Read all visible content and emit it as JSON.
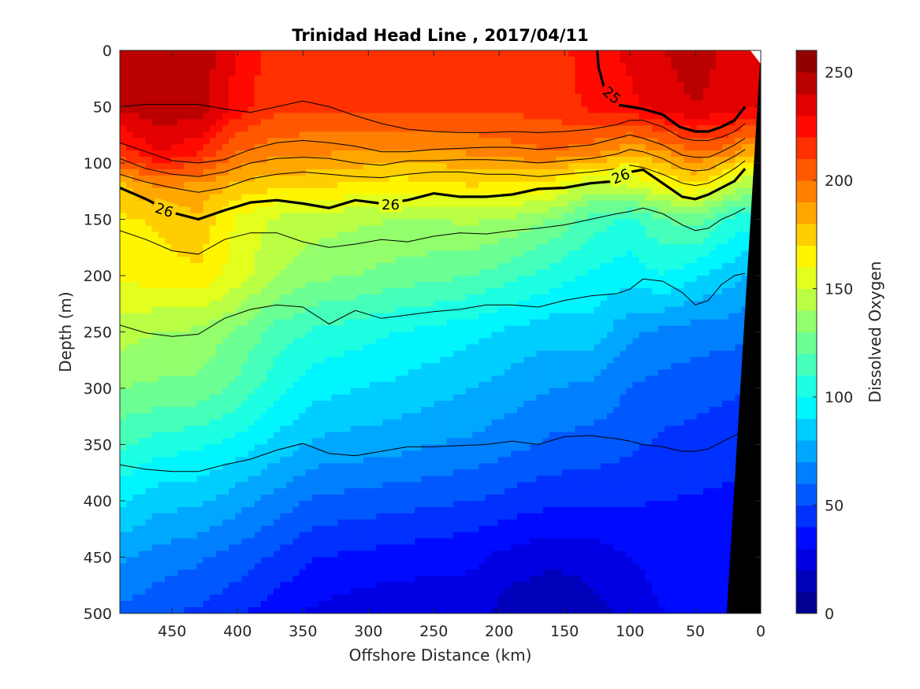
{
  "chart_data": {
    "type": "heatmap",
    "title": "Trinidad Head Line , 2017/04/11",
    "xlabel": "Offshore Distance (km)",
    "ylabel": "Depth (m)",
    "colorbar_label": "Dissolved Oxygen",
    "xlim": [
      490,
      0
    ],
    "ylim": [
      0,
      500
    ],
    "clim": [
      0,
      260
    ],
    "colormap": "jet",
    "x_ticks": [
      450,
      400,
      350,
      300,
      250,
      200,
      150,
      100,
      50,
      0
    ],
    "y_ticks": [
      0,
      50,
      100,
      150,
      200,
      250,
      300,
      350,
      400,
      450,
      500
    ],
    "colorbar_ticks": [
      0,
      50,
      100,
      150,
      200,
      250
    ],
    "field_x": [
      490,
      460,
      430,
      400,
      370,
      340,
      310,
      280,
      250,
      220,
      190,
      160,
      130,
      100,
      75,
      50,
      25,
      12
    ],
    "oxygen_profiles": [
      {
        "depth": 0,
        "values": [
          245,
          250,
          248,
          228,
          214,
          214,
          214,
          214,
          214,
          214,
          214,
          214,
          226,
          232,
          240,
          245,
          238,
          235
        ]
      },
      {
        "depth": 50,
        "values": [
          242,
          248,
          246,
          226,
          212,
          212,
          212,
          212,
          212,
          212,
          213,
          214,
          222,
          228,
          235,
          240,
          236,
          232
        ]
      },
      {
        "depth": 90,
        "values": [
          215,
          232,
          222,
          200,
          194,
          192,
          190,
          188,
          188,
          192,
          196,
          200,
          195,
          182,
          190,
          200,
          195,
          185
        ]
      },
      {
        "depth": 120,
        "values": [
          178,
          192,
          188,
          178,
          172,
          172,
          168,
          165,
          166,
          170,
          168,
          165,
          145,
          150,
          160,
          170,
          150,
          140
        ]
      },
      {
        "depth": 150,
        "values": [
          168,
          172,
          178,
          158,
          148,
          145,
          142,
          140,
          140,
          142,
          138,
          130,
          115,
          108,
          120,
          125,
          108,
          105
        ]
      },
      {
        "depth": 200,
        "values": [
          162,
          165,
          168,
          155,
          140,
          132,
          130,
          126,
          123,
          120,
          113,
          105,
          98,
          94,
          100,
          92,
          85,
          80
        ]
      },
      {
        "depth": 250,
        "values": [
          145,
          140,
          138,
          128,
          116,
          108,
          105,
          100,
          97,
          93,
          88,
          84,
          86,
          72,
          68,
          65,
          64,
          62
        ]
      },
      {
        "depth": 300,
        "values": [
          130,
          128,
          127,
          118,
          104,
          94,
          90,
          88,
          84,
          80,
          75,
          70,
          68,
          60,
          56,
          54,
          52,
          50
        ]
      },
      {
        "depth": 350,
        "values": [
          112,
          105,
          102,
          96,
          86,
          78,
          76,
          74,
          70,
          68,
          63,
          58,
          56,
          52,
          48,
          46,
          44,
          43
        ]
      },
      {
        "depth": 400,
        "values": [
          92,
          84,
          82,
          74,
          66,
          58,
          56,
          54,
          52,
          50,
          46,
          43,
          42,
          41,
          40,
          39,
          38,
          38
        ]
      },
      {
        "depth": 450,
        "values": [
          72,
          66,
          62,
          56,
          48,
          40,
          38,
          36,
          34,
          32,
          26,
          22,
          24,
          30,
          34,
          36,
          36,
          36
        ]
      },
      {
        "depth": 500,
        "values": [
          58,
          52,
          48,
          42,
          34,
          28,
          24,
          22,
          22,
          24,
          14,
          12,
          16,
          22,
          30,
          34,
          34,
          34
        ]
      }
    ],
    "density_contours": [
      {
        "x": [
          490,
          470,
          450,
          430,
          410,
          390,
          370,
          350,
          330,
          310,
          290,
          270,
          250,
          230,
          210,
          190,
          170,
          150,
          130,
          110,
          100,
          90,
          75,
          60,
          50,
          40,
          30,
          20,
          12
        ],
        "depth": [
          50,
          48,
          48,
          48,
          52,
          55,
          50,
          45,
          50,
          58,
          65,
          70,
          72,
          73,
          73,
          72,
          73,
          72,
          70,
          66,
          62,
          62,
          68,
          78,
          80,
          80,
          77,
          72,
          65
        ]
      },
      {
        "x": [
          490,
          470,
          450,
          430,
          410,
          390,
          370,
          350,
          330,
          310,
          290,
          270,
          250,
          230,
          210,
          190,
          170,
          150,
          130,
          110,
          100,
          90,
          75,
          60,
          50,
          40,
          30,
          20,
          12
        ],
        "depth": [
          82,
          90,
          98,
          100,
          97,
          88,
          82,
          80,
          82,
          85,
          90,
          90,
          88,
          87,
          86,
          86,
          88,
          86,
          84,
          78,
          75,
          78,
          84,
          93,
          95,
          95,
          90,
          84,
          78
        ]
      },
      {
        "x": [
          490,
          470,
          450,
          430,
          410,
          390,
          370,
          350,
          330,
          310,
          290,
          270,
          250,
          230,
          210,
          190,
          170,
          150,
          130,
          110,
          100,
          90,
          75,
          60,
          50,
          40,
          30,
          20,
          12
        ],
        "depth": [
          96,
          105,
          110,
          112,
          108,
          100,
          96,
          95,
          96,
          100,
          102,
          98,
          98,
          97,
          97,
          98,
          100,
          98,
          96,
          92,
          88,
          90,
          96,
          105,
          107,
          106,
          100,
          94,
          88
        ]
      },
      {
        "x": [
          490,
          470,
          450,
          430,
          410,
          390,
          370,
          350,
          330,
          310,
          290,
          270,
          250,
          230,
          210,
          190,
          170,
          150,
          130,
          110,
          100,
          90,
          75,
          60,
          50,
          40,
          30,
          20,
          12
        ],
        "depth": [
          110,
          117,
          122,
          126,
          122,
          114,
          110,
          108,
          110,
          112,
          113,
          110,
          108,
          108,
          110,
          110,
          112,
          110,
          108,
          105,
          102,
          104,
          110,
          118,
          120,
          118,
          112,
          105,
          98
        ]
      },
      {
        "x": [
          490,
          470,
          450,
          430,
          410,
          390,
          370,
          350,
          330,
          310,
          290,
          270,
          250,
          230,
          210,
          190,
          170,
          150,
          130,
          110,
          100,
          90,
          75,
          60,
          50,
          40,
          30,
          20,
          12
        ],
        "depth": [
          160,
          168,
          178,
          181,
          168,
          162,
          162,
          170,
          175,
          172,
          168,
          170,
          165,
          162,
          163,
          160,
          158,
          155,
          150,
          145,
          143,
          140,
          145,
          155,
          160,
          158,
          150,
          145,
          140
        ]
      },
      {
        "x": [
          490,
          470,
          450,
          430,
          410,
          390,
          370,
          350,
          330,
          310,
          290,
          270,
          250,
          230,
          210,
          190,
          170,
          150,
          130,
          110,
          100,
          90,
          75,
          60,
          50,
          40,
          30,
          20,
          12
        ],
        "depth": [
          244,
          251,
          254,
          252,
          238,
          230,
          226,
          228,
          243,
          231,
          238,
          235,
          232,
          230,
          226,
          226,
          228,
          222,
          218,
          216,
          212,
          203,
          205,
          215,
          226,
          222,
          208,
          200,
          198
        ]
      },
      {
        "x": [
          490,
          470,
          450,
          430,
          410,
          390,
          370,
          350,
          330,
          310,
          290,
          270,
          250,
          230,
          210,
          190,
          170,
          150,
          130,
          110,
          100,
          90,
          75,
          60,
          50,
          40,
          30,
          20,
          12
        ],
        "depth": [
          368,
          372,
          374,
          374,
          368,
          363,
          355,
          349,
          358,
          360,
          356,
          352,
          352,
          351,
          350,
          347,
          350,
          343,
          342,
          345,
          347,
          350,
          352,
          356,
          356,
          354,
          348,
          342,
          338
        ]
      }
    ],
    "labeled_contours": [
      {
        "label": "25",
        "x": [
          125,
          124,
          120,
          112,
          100,
          90,
          75,
          62,
          50,
          40,
          30,
          20,
          12
        ],
        "depth": [
          0,
          15,
          32,
          48,
          50,
          52,
          57,
          68,
          72,
          72,
          68,
          62,
          50
        ]
      },
      {
        "label": "26",
        "x": [
          490,
          470,
          450,
          430,
          410,
          390,
          370,
          350,
          330,
          310,
          290,
          270,
          250,
          230,
          210,
          190,
          170,
          150,
          130,
          110,
          100,
          90,
          75,
          60,
          50,
          40,
          30,
          20,
          12
        ],
        "depth": [
          122,
          132,
          144,
          150,
          142,
          135,
          133,
          136,
          140,
          133,
          136,
          133,
          127,
          130,
          130,
          128,
          123,
          122,
          118,
          116,
          108,
          106,
          118,
          130,
          132,
          128,
          122,
          116,
          105
        ]
      }
    ],
    "contour_label_positions": [
      {
        "text": "26",
        "x": 456,
        "depth": 142,
        "angle": 18
      },
      {
        "text": "26",
        "x": 283,
        "depth": 137,
        "angle": 0
      },
      {
        "text": "25",
        "x": 114,
        "depth": 40,
        "angle": 40
      },
      {
        "text": "26",
        "x": 107,
        "depth": 112,
        "angle": -22
      }
    ],
    "bathymetry": {
      "x_top": 0,
      "x_bottom": 26,
      "depth_top": 0,
      "depth_bottom": 500
    }
  }
}
